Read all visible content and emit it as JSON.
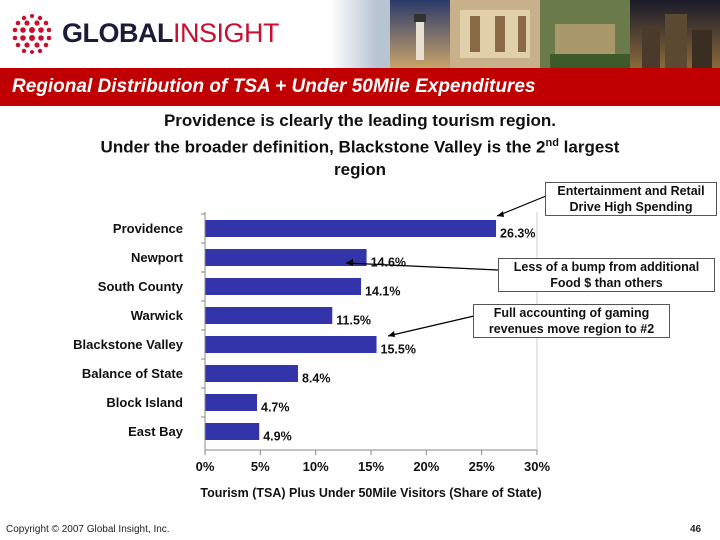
{
  "header": {
    "logo_word1": "GLOBAL",
    "logo_word2": "INSIGHT",
    "title": "Regional Distribution of TSA + Under 50Mile Expenditures"
  },
  "subtitle": {
    "line1": "Providence is clearly the leading tourism region.",
    "line2_pre": "Under the broader definition, Blackstone Valley is the 2",
    "line2_sup": "nd",
    "line2_post": " largest",
    "line3": "region"
  },
  "callouts": {
    "entertainment": "Entertainment and Retail Drive High Spending",
    "bump": "Less of a bump from additional Food $ than others",
    "gaming": "Full accounting of gaming revenues move region to #2"
  },
  "chart_data": {
    "type": "bar",
    "orientation": "horizontal",
    "categories": [
      "Providence",
      "Newport",
      "South County",
      "Warwick",
      "Blackstone Valley",
      "Balance of State",
      "Block Island",
      "East Bay"
    ],
    "values": [
      26.3,
      14.6,
      14.1,
      11.5,
      15.5,
      8.4,
      4.7,
      4.9
    ],
    "value_labels": [
      "26.3%",
      "14.6%",
      "14.1%",
      "11.5%",
      "15.5%",
      "8.4%",
      "4.7%",
      "4.9%"
    ],
    "xlabel": "Tourism (TSA) Plus Under 50Mile Visitors (Share of State)",
    "xlim": [
      0,
      30
    ],
    "xticks": [
      0,
      5,
      10,
      15,
      20,
      25,
      30
    ],
    "xtick_labels": [
      "0%",
      "5%",
      "10%",
      "15%",
      "20%",
      "25%",
      "30%"
    ],
    "bar_color": "#3333aa",
    "grid": false
  },
  "footer": {
    "copyright": "Copyright © 2007 Global Insight, Inc.",
    "page": "46"
  },
  "colors": {
    "title_bar": "#c00000",
    "bar": "#3333aa"
  }
}
